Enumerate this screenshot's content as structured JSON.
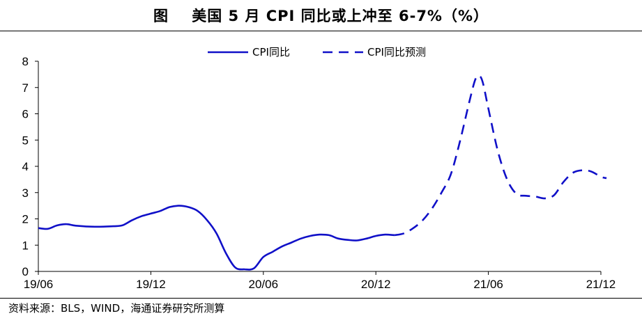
{
  "header": {
    "title": "图    美国 5 月 CPI 同比或上冲至 6-7%（%）"
  },
  "footer": {
    "source": "资料来源：BLS，WIND，海通证券研究所测算"
  },
  "colors": {
    "series_color": "#1010c8",
    "axis_color": "#000000"
  },
  "chart_data": {
    "type": "line",
    "title": "美国 5 月 CPI 同比或上冲至 6-7%（%）",
    "xlabel": "",
    "ylabel": "",
    "ylim": [
      0,
      8
    ],
    "yticks": [
      0,
      1,
      2,
      3,
      4,
      5,
      6,
      7,
      8
    ],
    "xlim": [
      0,
      30
    ],
    "xticks": [
      {
        "x": 0,
        "label": "19/06"
      },
      {
        "x": 6,
        "label": "19/12"
      },
      {
        "x": 12,
        "label": "20/06"
      },
      {
        "x": 18,
        "label": "20/12"
      },
      {
        "x": 24,
        "label": "21/06"
      },
      {
        "x": 30,
        "label": "21/12"
      }
    ],
    "legend_position": "top-center",
    "grid": false,
    "series": [
      {
        "name": "CPI同比",
        "style": "solid",
        "points": [
          [
            0,
            1.65
          ],
          [
            0.5,
            1.62
          ],
          [
            1,
            1.75
          ],
          [
            1.5,
            1.8
          ],
          [
            2,
            1.74
          ],
          [
            3,
            1.7
          ],
          [
            4,
            1.72
          ],
          [
            4.5,
            1.76
          ],
          [
            5,
            1.95
          ],
          [
            5.5,
            2.1
          ],
          [
            6,
            2.2
          ],
          [
            6.5,
            2.3
          ],
          [
            7,
            2.45
          ],
          [
            7.5,
            2.5
          ],
          [
            8,
            2.45
          ],
          [
            8.5,
            2.3
          ],
          [
            9,
            1.95
          ],
          [
            9.5,
            1.45
          ],
          [
            10,
            0.7
          ],
          [
            10.5,
            0.15
          ],
          [
            11,
            0.08
          ],
          [
            11.5,
            0.12
          ],
          [
            12,
            0.55
          ],
          [
            12.5,
            0.75
          ],
          [
            13,
            0.95
          ],
          [
            13.5,
            1.1
          ],
          [
            14,
            1.25
          ],
          [
            14.5,
            1.35
          ],
          [
            15,
            1.4
          ],
          [
            15.5,
            1.38
          ],
          [
            16,
            1.25
          ],
          [
            16.5,
            1.2
          ],
          [
            17,
            1.18
          ],
          [
            17.5,
            1.25
          ],
          [
            18,
            1.35
          ],
          [
            18.5,
            1.4
          ],
          [
            19,
            1.38
          ]
        ]
      },
      {
        "name": "CPI同比预测",
        "style": "dashed",
        "points": [
          [
            19,
            1.38
          ],
          [
            19.5,
            1.45
          ],
          [
            20,
            1.65
          ],
          [
            20.5,
            1.95
          ],
          [
            21,
            2.4
          ],
          [
            21.5,
            3.0
          ],
          [
            22,
            3.7
          ],
          [
            22.5,
            5.0
          ],
          [
            23,
            6.5
          ],
          [
            23.3,
            7.3
          ],
          [
            23.5,
            7.45
          ],
          [
            23.7,
            7.2
          ],
          [
            24,
            6.2
          ],
          [
            24.5,
            4.6
          ],
          [
            25,
            3.5
          ],
          [
            25.5,
            2.95
          ],
          [
            26,
            2.88
          ],
          [
            26.5,
            2.85
          ],
          [
            27,
            2.78
          ],
          [
            27.5,
            2.9
          ],
          [
            28,
            3.4
          ],
          [
            28.5,
            3.75
          ],
          [
            29,
            3.85
          ],
          [
            29.5,
            3.8
          ],
          [
            30,
            3.6
          ],
          [
            30.3,
            3.55
          ]
        ]
      }
    ]
  }
}
